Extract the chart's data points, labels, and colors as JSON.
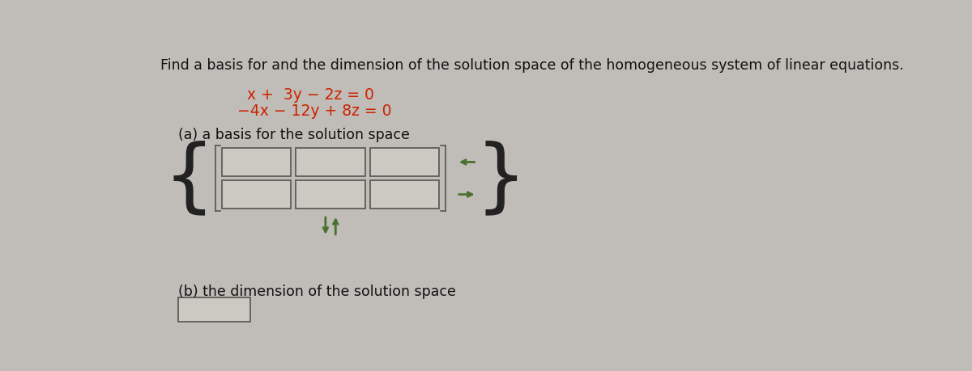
{
  "bg_color": "#c0bdb8",
  "title_text": "Find a basis for and the dimension of the solution space of the homogeneous system of linear equations.",
  "eq1": "x +  3y − 2z = 0",
  "eq2": "−4x − 12y + 8z = 0",
  "part_a_label": "(a) a basis for the solution space",
  "part_b_label": "(b) the dimension of the solution space",
  "title_fontsize": 12.5,
  "eq_fontsize": 13.5,
  "label_fontsize": 12.5,
  "box_color": "#ccc8c2",
  "box_edge_color": "#555550",
  "arrow_color": "#4a7030",
  "brace_color": "#222222",
  "bracket_color": "#555550",
  "matrix_rows": 2,
  "matrix_cols": 3,
  "eq_color": "#cc2200",
  "text_color": "#111111"
}
